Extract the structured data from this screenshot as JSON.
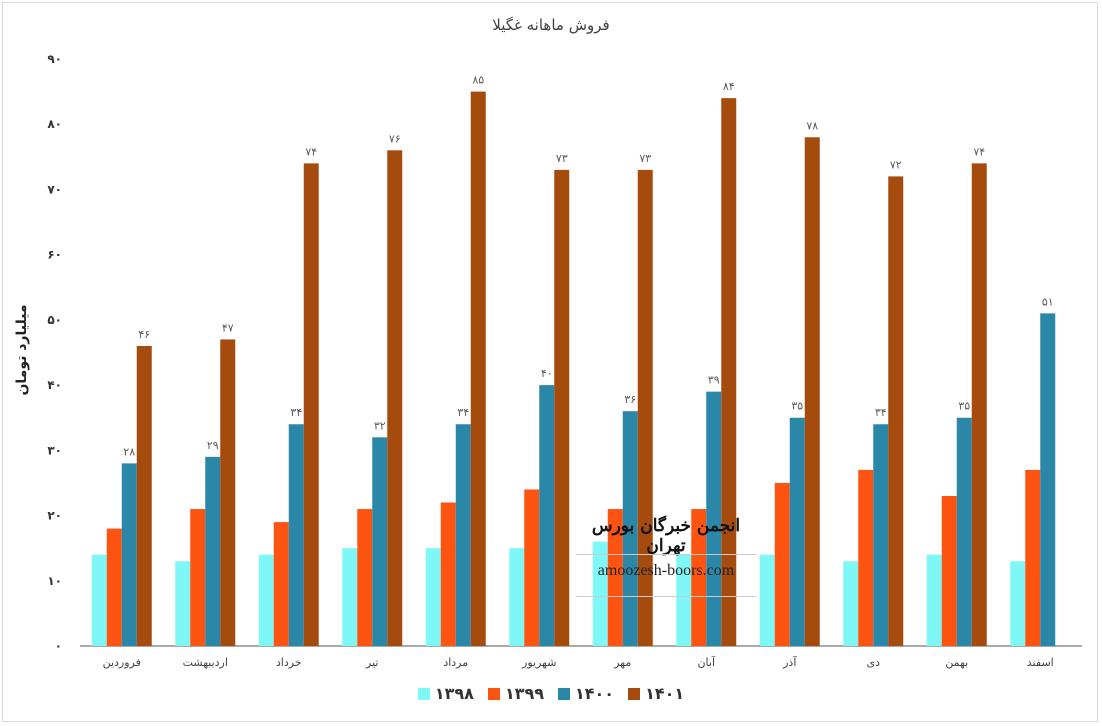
{
  "chart_data": {
    "type": "bar",
    "title": "فروش ماهانه غگیلا",
    "ylabel": "میلیارد تومان",
    "xlabel": "",
    "ylim": [
      0,
      90
    ],
    "yticks": [
      0,
      10,
      20,
      30,
      40,
      50,
      60,
      70,
      80,
      90
    ],
    "ytick_labels": [
      "۰",
      "۱۰",
      "۲۰",
      "۳۰",
      "۴۰",
      "۵۰",
      "۶۰",
      "۷۰",
      "۸۰",
      "۹۰"
    ],
    "grid": false,
    "legend_position": "bottom",
    "categories": [
      "فروردین",
      "اردیبهشت",
      "خرداد",
      "تیر",
      "مرداد",
      "شهریور",
      "مهر",
      "آبان",
      "آذر",
      "دی",
      "بهمن",
      "اسفند"
    ],
    "series": [
      {
        "name": "۱۳۹۸",
        "color": "#7ff7f7",
        "values": [
          14,
          13,
          14,
          15,
          15,
          15,
          16,
          14,
          14,
          13,
          14,
          13
        ],
        "labels": []
      },
      {
        "name": "۱۳۹۹",
        "color": "#fe5412",
        "values": [
          18,
          21,
          19,
          21,
          22,
          24,
          21,
          21,
          25,
          27,
          23,
          27
        ],
        "labels": []
      },
      {
        "name": "۱۴۰۰",
        "color": "#2a87a8",
        "values": [
          28,
          29,
          34,
          32,
          34,
          40,
          36,
          39,
          35,
          34,
          35,
          51
        ],
        "labels": [
          "۲۸",
          "۲۹",
          "۳۴",
          "۳۲",
          "۳۴",
          "۴۰",
          "۳۶",
          "۳۹",
          "۳۵",
          "۳۴",
          "۳۵",
          "۵۱"
        ]
      },
      {
        "name": "۱۴۰۱",
        "color": "#a64b0e",
        "values": [
          46,
          47,
          74,
          76,
          85,
          73,
          73,
          84,
          78,
          72,
          74,
          null
        ],
        "labels": [
          "۴۶",
          "۴۷",
          "۷۴",
          "۷۶",
          "۸۵",
          "۷۳",
          "۷۳",
          "۸۴",
          "۷۸",
          "۷۲",
          "۷۴",
          ""
        ]
      }
    ]
  },
  "watermark": {
    "title": "انجمن خبرگان بورس تهران",
    "url": "amoozesh-boors.com"
  }
}
